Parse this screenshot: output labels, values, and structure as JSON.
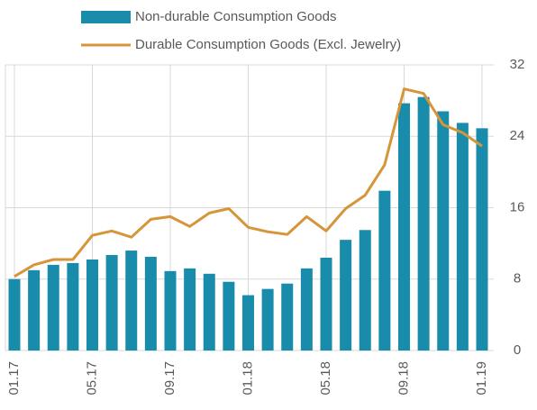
{
  "chart_data": {
    "type": "bar_line",
    "categories": [
      "01.17",
      null,
      null,
      null,
      "05.17",
      null,
      null,
      null,
      "09.17",
      null,
      null,
      null,
      "01.18",
      null,
      null,
      null,
      "05.18",
      null,
      null,
      null,
      "09.18",
      null,
      null,
      null,
      "01.19"
    ],
    "series": [
      {
        "name": "Non-durable Consumption Goods",
        "type": "bar",
        "color": "#1a8cab",
        "values": [
          8.0,
          9.0,
          9.6,
          9.8,
          10.2,
          10.7,
          11.2,
          10.5,
          8.9,
          9.2,
          8.6,
          7.7,
          6.2,
          6.9,
          7.5,
          9.2,
          10.4,
          12.4,
          13.5,
          17.9,
          27.7,
          28.4,
          26.8,
          25.5,
          24.9
        ]
      },
      {
        "name": "Durable Consumption Goods (Excl. Jewelry)",
        "type": "line",
        "color": "#d69539",
        "values": [
          8.3,
          9.6,
          10.2,
          10.2,
          12.9,
          13.4,
          12.7,
          14.7,
          15.0,
          13.9,
          15.4,
          15.9,
          13.8,
          13.3,
          13.0,
          15.0,
          13.4,
          15.9,
          17.4,
          20.8,
          29.3,
          28.8,
          25.3,
          24.4,
          22.9
        ]
      }
    ],
    "ylim": [
      0,
      32
    ],
    "yticks": [
      0,
      8,
      16,
      24,
      32
    ],
    "grid": true,
    "legend": "top"
  }
}
